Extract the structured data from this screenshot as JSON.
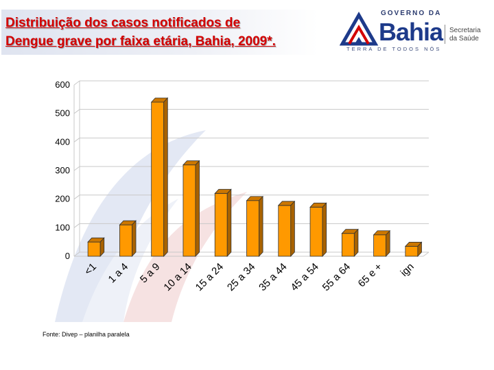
{
  "title": {
    "line1": "Distribuição dos casos notificados de",
    "line2": "Dengue grave por faixa etária, Bahia, 2009*."
  },
  "logo": {
    "top_text": "GOVERNO DA",
    "name": "Bahia",
    "tagline": "TERRA DE TODOS NÓS",
    "secretaria_line1": "Secretaria",
    "secretaria_line2": "da Saúde"
  },
  "source": "Fonte: Divep – planilha paralela",
  "colors": {
    "title": "#d40000",
    "bar_front": "#ff9900",
    "bar_top": "#cc7700",
    "bar_side": "#a86200",
    "grid": "#c8c8c8"
  },
  "chart_data": {
    "type": "bar",
    "categories": [
      "<1",
      "1 a 4",
      "5 a 9",
      "10 a 14",
      "15 a 24",
      "25 a 34",
      "35 a 44",
      "45 a 54",
      "55 a 64",
      "65 e +",
      "ign"
    ],
    "values": [
      50,
      110,
      540,
      320,
      220,
      195,
      178,
      172,
      80,
      75,
      35
    ],
    "yticks": [
      0,
      100,
      200,
      300,
      400,
      500,
      600
    ],
    "ylim": [
      0,
      600
    ],
    "grid": true,
    "legend": "none"
  }
}
